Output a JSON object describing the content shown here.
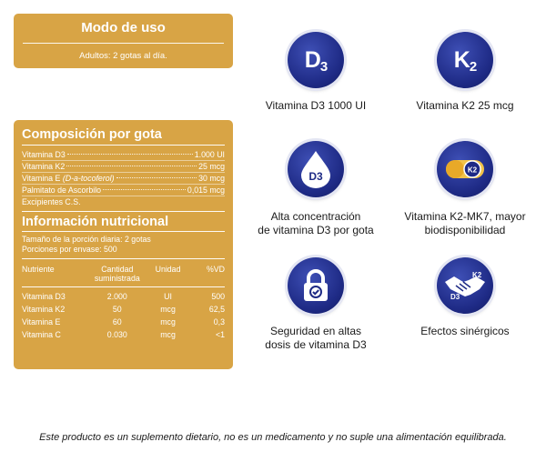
{
  "modo_de_uso": {
    "title": "Modo de uso",
    "text": "Adultos: 2 gotas al día."
  },
  "composicion": {
    "title": "Composición por gota",
    "rows": [
      {
        "label": "Vitamina D3",
        "value": "1.000 UI"
      },
      {
        "label": "Vitamina K2",
        "value": "25 mcg"
      },
      {
        "label_main": "Vitamina E ",
        "label_italic": "(D-a-tocoferol)",
        "value": "30 mcg"
      },
      {
        "label": "Palmitato de Ascorbilo",
        "value": "0,015 mcg"
      },
      {
        "label": "Excipientes C.S.",
        "value": ""
      }
    ]
  },
  "informacion": {
    "title": "Información nutricional",
    "porcion": "Tamaño de la porción diaria: 2 gotas",
    "porciones": "Porciones por envase: 500",
    "headers": [
      "Nutriente",
      "Cantidad suministrada",
      "Unidad",
      "%VD"
    ],
    "rows": [
      [
        "Vitamina D3",
        "2.000",
        "UI",
        "500"
      ],
      [
        "Vitamina K2",
        "50",
        "mcg",
        "62,5"
      ],
      [
        "Vitamina E",
        "60",
        "mcg",
        "0,3"
      ],
      [
        "Vitamina C",
        "0.030",
        "mcg",
        "<1"
      ]
    ]
  },
  "features": [
    {
      "icon": "d3-icon",
      "badge": "D",
      "badge_sub": "3",
      "caption": "Vitamina D3 1000 UI"
    },
    {
      "icon": "k2-icon",
      "badge": "K",
      "badge_sub": "2",
      "caption": "Vitamina K2 25 mcg"
    },
    {
      "icon": "drop-d3-icon",
      "badge_text": "D3",
      "caption_line1": "Alta concentración",
      "caption_line2": "de vitamina D3 por gota"
    },
    {
      "icon": "capsule-k2-icon",
      "badge_text": "K2",
      "caption_line1": "Vitamina K2-MK7, mayor",
      "caption_line2": "biodisponibilidad"
    },
    {
      "icon": "lock-icon",
      "caption_line1": "Seguridad en altas",
      "caption_line2": "dosis de vitamina D3"
    },
    {
      "icon": "handshake-icon",
      "label_left": "D3",
      "label_right": "K2",
      "caption": "Efectos sinérgicos"
    }
  ],
  "disclaimer": "Este producto es un suplemento dietario, no es un medicamento y no suple una alimentación equilibrada.",
  "colors": {
    "panel": "#d8a445",
    "badge": "#1e2a85",
    "text": "#1a1a1a"
  }
}
